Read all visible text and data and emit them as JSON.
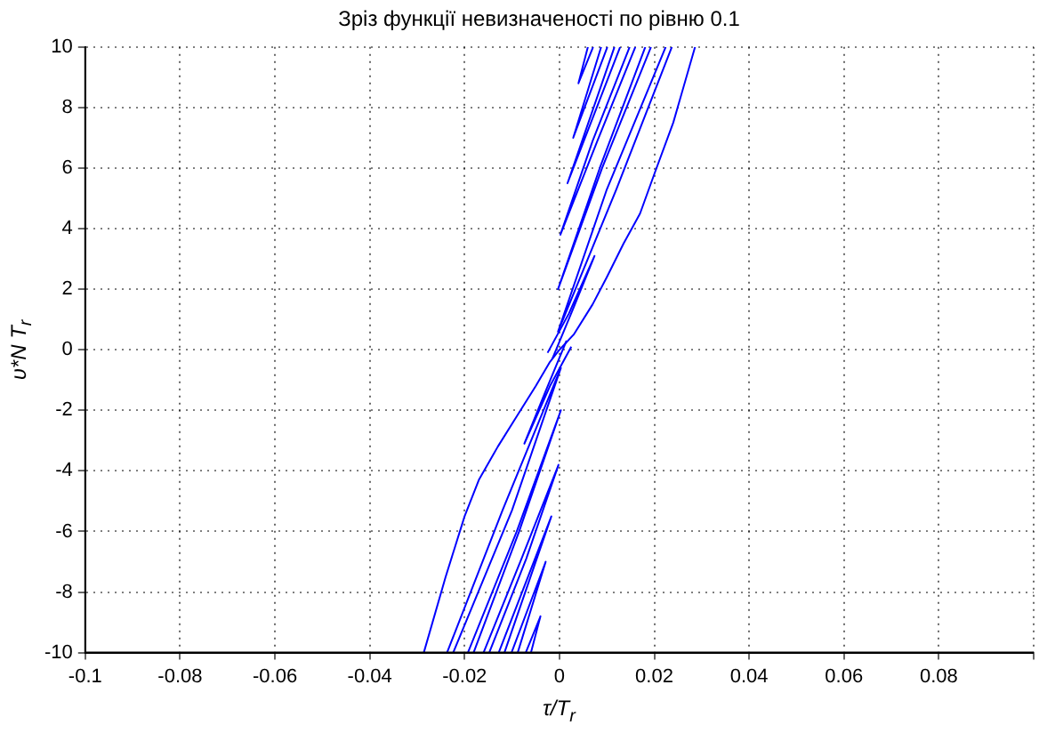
{
  "chart_data": {
    "type": "line",
    "title": "Зріз функції невизначеності по рівню 0.1",
    "xlabel": "τ/T$_{r}$",
    "ylabel": "υ*N T$_{r}$",
    "xlim": [
      -0.1,
      0.1
    ],
    "ylim": [
      -10,
      10
    ],
    "xticks": [
      -0.1,
      -0.08,
      -0.06,
      -0.04,
      -0.02,
      0,
      0.02,
      0.04,
      0.06,
      0.08,
      {
        "value": 0.1,
        "label": null
      }
    ],
    "yticks": [
      -10,
      -8,
      -6,
      -4,
      -2,
      0,
      2,
      4,
      6,
      8,
      10
    ],
    "grid": true,
    "legend": false,
    "marker": "none",
    "line_style": "solid",
    "series": [
      {
        "color": "#0000ff",
        "x": [
          -0.0286,
          -0.024,
          -0.02,
          -0.017,
          -0.013,
          -0.009,
          -0.005,
          -0.002,
          0,
          0.003,
          0.007,
          0.01,
          0.0135,
          0.017,
          0.02,
          0.024,
          0.0286
        ],
        "values": [
          -10,
          -7.5,
          -5.5,
          -4.3,
          -3.2,
          -2.2,
          -1.2,
          -0.4,
          0,
          0.5,
          1.5,
          2.4,
          3.5,
          4.5,
          5.8,
          7.5,
          10
        ]
      },
      {
        "color": "#0000ff",
        "x": [
          -0.0237,
          -0.012,
          0.0003,
          -0.01,
          -0.0224
        ],
        "values": [
          -10,
          -5.3,
          -0.6,
          -5.3,
          -10
        ]
      },
      {
        "color": "#0000ff",
        "x": [
          -0.0193,
          -0.009,
          0.0003,
          -0.0085,
          -0.0181
        ],
        "values": [
          -10,
          -6,
          -2,
          -6,
          -10
        ]
      },
      {
        "color": "#0000ff",
        "x": [
          -0.016,
          -0.008,
          -0.0002,
          -0.007,
          -0.0148
        ],
        "values": [
          -10,
          -6.9,
          -3.8,
          -6.9,
          -10
        ]
      },
      {
        "color": "#0000ff",
        "x": [
          -0.0128,
          -0.0017,
          -0.0116
        ],
        "values": [
          -10,
          -5.5,
          -10
        ]
      },
      {
        "color": "#0000ff",
        "x": [
          -0.0101,
          -0.0029,
          -0.0088
        ],
        "values": [
          -10,
          -7,
          -10
        ]
      },
      {
        "color": "#0000ff",
        "x": [
          -0.0071,
          -0.004,
          -0.006
        ],
        "values": [
          -10,
          -8.8,
          -10
        ]
      },
      {
        "color": "#0000ff",
        "x": [
          0.0015,
          -0.003,
          -0.0074,
          -0.002,
          0.0025
        ],
        "values": [
          0.3,
          -1.4,
          -3.1,
          -1.2,
          0.1
        ]
      },
      {
        "color": "#0000ff",
        "x": [
          0.0237,
          0.012,
          -0.0003,
          0.01,
          0.0224
        ],
        "values": [
          10,
          5.3,
          0.6,
          5.3,
          10
        ]
      },
      {
        "color": "#0000ff",
        "x": [
          0.0193,
          0.009,
          -0.0003,
          0.0085,
          0.0181
        ],
        "values": [
          10,
          6,
          2,
          6,
          10
        ]
      },
      {
        "color": "#0000ff",
        "x": [
          0.016,
          0.008,
          0.0002,
          0.007,
          0.0148
        ],
        "values": [
          10,
          6.9,
          3.8,
          6.9,
          10
        ]
      },
      {
        "color": "#0000ff",
        "x": [
          0.0128,
          0.0017,
          0.0116
        ],
        "values": [
          10,
          5.5,
          10
        ]
      },
      {
        "color": "#0000ff",
        "x": [
          0.0101,
          0.0029,
          0.0088
        ],
        "values": [
          10,
          7,
          10
        ]
      },
      {
        "color": "#0000ff",
        "x": [
          0.0071,
          0.004,
          0.006
        ],
        "values": [
          10,
          8.8,
          10
        ]
      },
      {
        "color": "#0000ff",
        "x": [
          -0.0015,
          0.003,
          0.0074,
          0.002,
          -0.0025
        ],
        "values": [
          -0.3,
          1.4,
          3.1,
          1.2,
          -0.1
        ]
      }
    ]
  }
}
